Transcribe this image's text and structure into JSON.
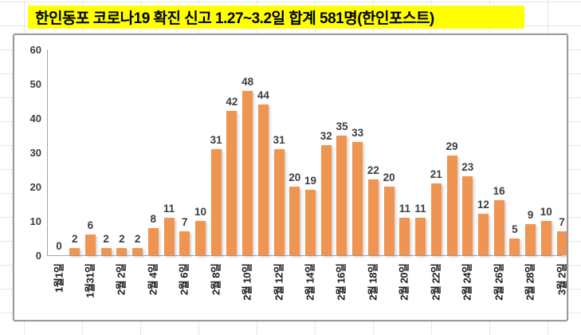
{
  "title_banner": {
    "text": "한인동포 코로나19 확진 신고 1.27~3.2일 합계 581명(한인포스트)",
    "bg_color": "#FFFF00",
    "text_color": "#000000"
  },
  "chart_data": {
    "type": "bar",
    "title": "한인동포 코로나19 확진 신고 1.27~3.2일 합계 581명(한인포스트)",
    "values": [
      0,
      2,
      6,
      2,
      2,
      2,
      8,
      11,
      7,
      10,
      31,
      42,
      48,
      44,
      31,
      20,
      19,
      32,
      35,
      33,
      22,
      20,
      11,
      11,
      21,
      29,
      23,
      12,
      16,
      5,
      9,
      10,
      7
    ],
    "total": 581,
    "data_labels_shown": true,
    "x_tick_labels": [
      "1월1일",
      "1월31일",
      "2월 2일",
      "2월 4일",
      "2월 6일",
      "2월 8일",
      "2월 10일",
      "2월 12일",
      "2월 14일",
      "2월 16일",
      "2월 18일",
      "2월 20일",
      "2월 22일",
      "2월 24일",
      "2월 26일",
      "2월 28일",
      "3월 2일"
    ],
    "x_tick_every": 2,
    "x_label_rotation_deg": 90,
    "yticks": [
      0,
      10,
      20,
      30,
      40,
      50,
      60
    ],
    "ylim": [
      0,
      60
    ],
    "ylabel": "",
    "xlabel": "",
    "legend": "none",
    "gridlines": "none",
    "bar_color": "#EF9451",
    "label_color": "#3d3d3d"
  }
}
